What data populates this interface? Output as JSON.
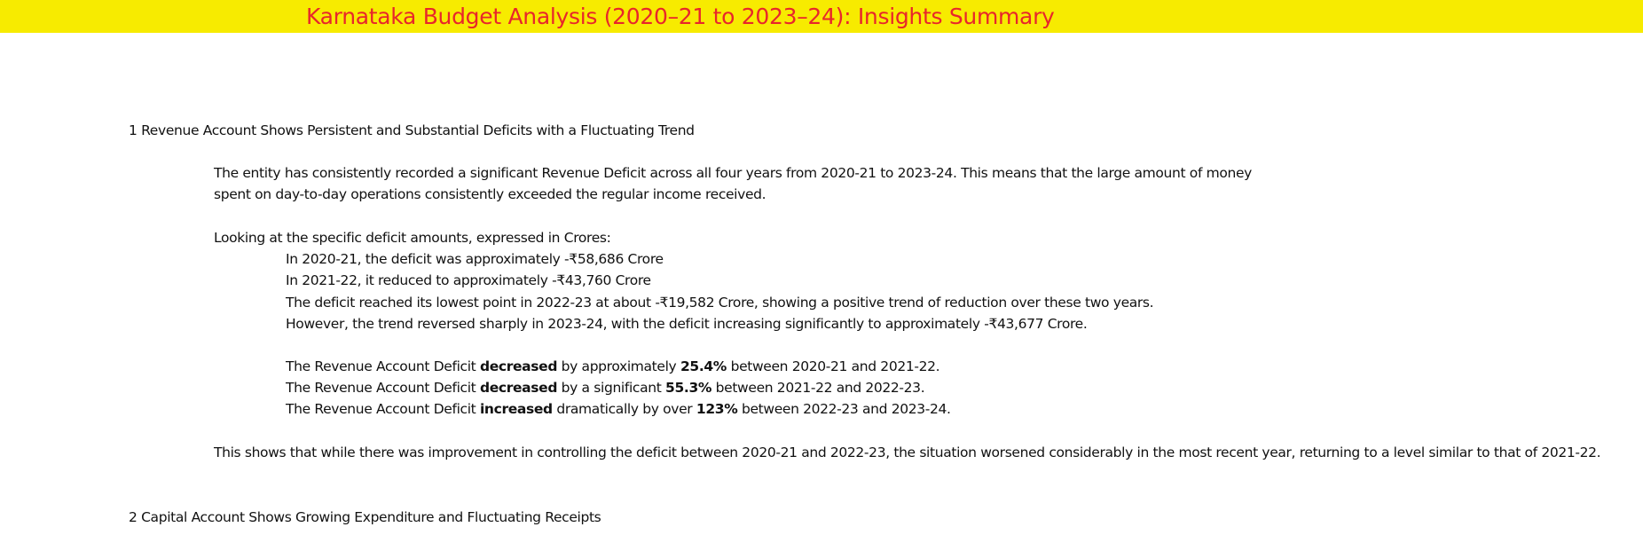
{
  "title": "Karnataka Budget Analysis (2020–21 to 2023–24): Insights Summary",
  "section1": {
    "heading": "1  Revenue Account Shows Persistent and Substantial Deficits with a Fluctuating Trend",
    "intro_line1": "The entity has consistently recorded a significant Revenue Deficit across all four years from 2020-21 to 2023-24. This means that the large amount of money",
    "intro_line2": "spent on day-to-day operations consistently exceeded the regular income received.",
    "amounts_lead": "Looking at the specific deficit amounts, expressed in Crores:",
    "amounts": [
      "In 2020-21, the deficit was approximately -₹58,686 Crore",
      "In 2021-22, it reduced to approximately -₹43,760 Crore",
      "The deficit reached its lowest point in 2022-23 at about -₹19,582 Crore, showing a positive trend of reduction over these two years.",
      "However, the trend reversed sharply in 2023-24, with the deficit increasing significantly to approximately -₹43,677 Crore."
    ],
    "changes": [
      {
        "prefix": "The Revenue Account Deficit ",
        "direction": "decreased",
        "middle": " by approximately ",
        "pct": "25.4%",
        "suffix": " between 2020-21 and 2021-22."
      },
      {
        "prefix": "The Revenue Account Deficit ",
        "direction": "decreased",
        "middle": " by a significant ",
        "pct": "55.3%",
        "suffix": " between 2021-22 and 2022-23."
      },
      {
        "prefix": "The Revenue Account Deficit ",
        "direction": "increased",
        "middle": " dramatically by over ",
        "pct": "123%",
        "suffix": " between 2022-23 and 2023-24."
      }
    ],
    "conclusion": "This shows that while there was improvement in controlling the deficit between 2020-21 and 2022-23, the situation worsened considerably in the most recent year, returning to a level similar to that of 2021-22."
  },
  "section2": {
    "heading": "2  Capital Account Shows Growing Expenditure and Fluctuating Receipts"
  },
  "colors": {
    "title_bar": "#f7eb00",
    "title_text": "#e8262b"
  }
}
